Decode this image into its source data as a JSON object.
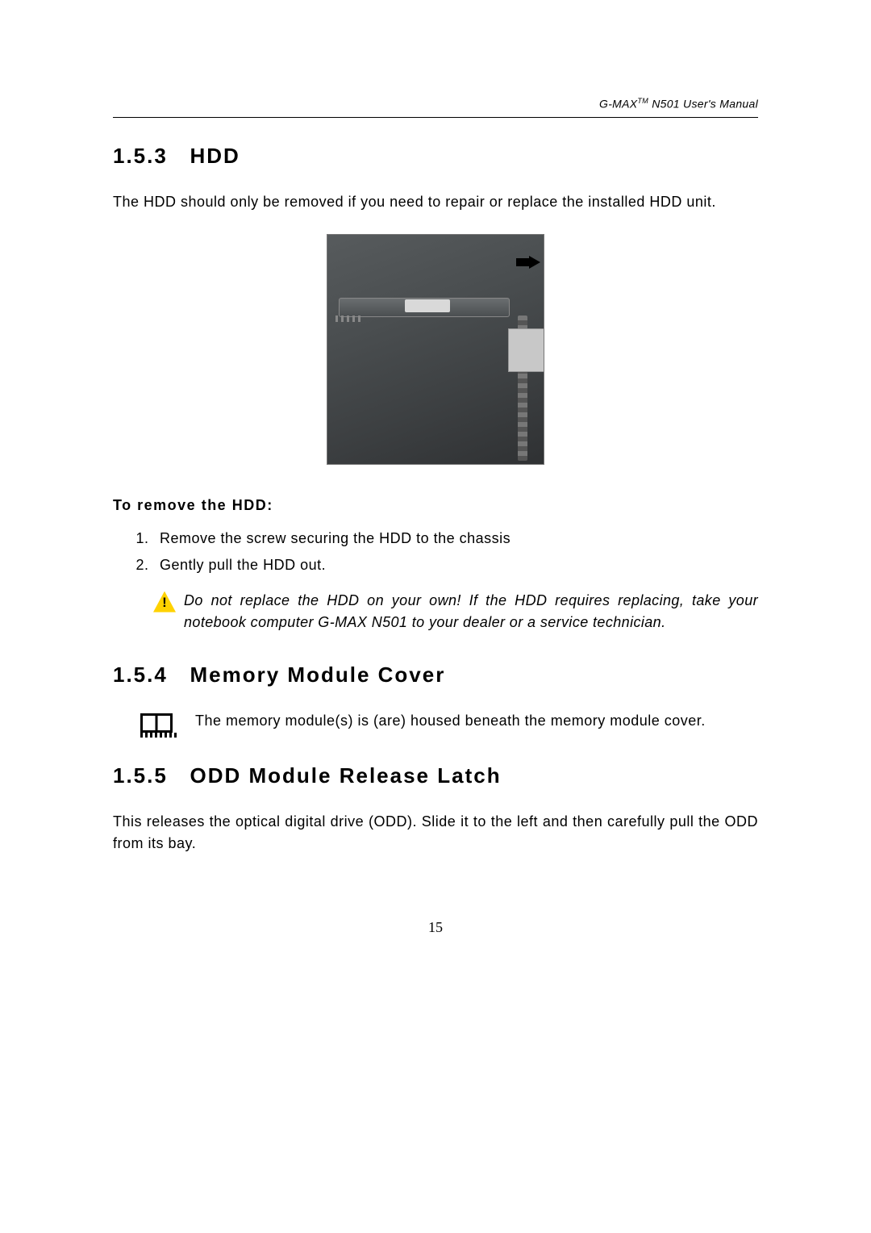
{
  "header": {
    "brand": "G-MAX",
    "tm": "TM",
    "suffix": "N501 User's Manual"
  },
  "s1": {
    "num": "1.5.3",
    "title": "HDD",
    "intro": "The HDD should only be removed if you need to repair or replace the installed HDD unit.",
    "sub": "To remove the HDD:",
    "step1": "Remove the screw securing the HDD to the chassis",
    "step2": "Gently pull the HDD out.",
    "warn": "Do not replace the HDD on your own! If the HDD requires replacing, take your notebook computer G-MAX N501 to your dealer or a service technician."
  },
  "s2": {
    "num": "1.5.4",
    "title": "Memory Module Cover",
    "body": "The memory module(s) is (are) housed beneath the memory module cover."
  },
  "s3": {
    "num": "1.5.5",
    "title": "ODD Module Release Latch",
    "body": "This releases the optical digital drive (ODD). Slide it to the left and then carefully pull the ODD from its bay."
  },
  "page_number": "15"
}
